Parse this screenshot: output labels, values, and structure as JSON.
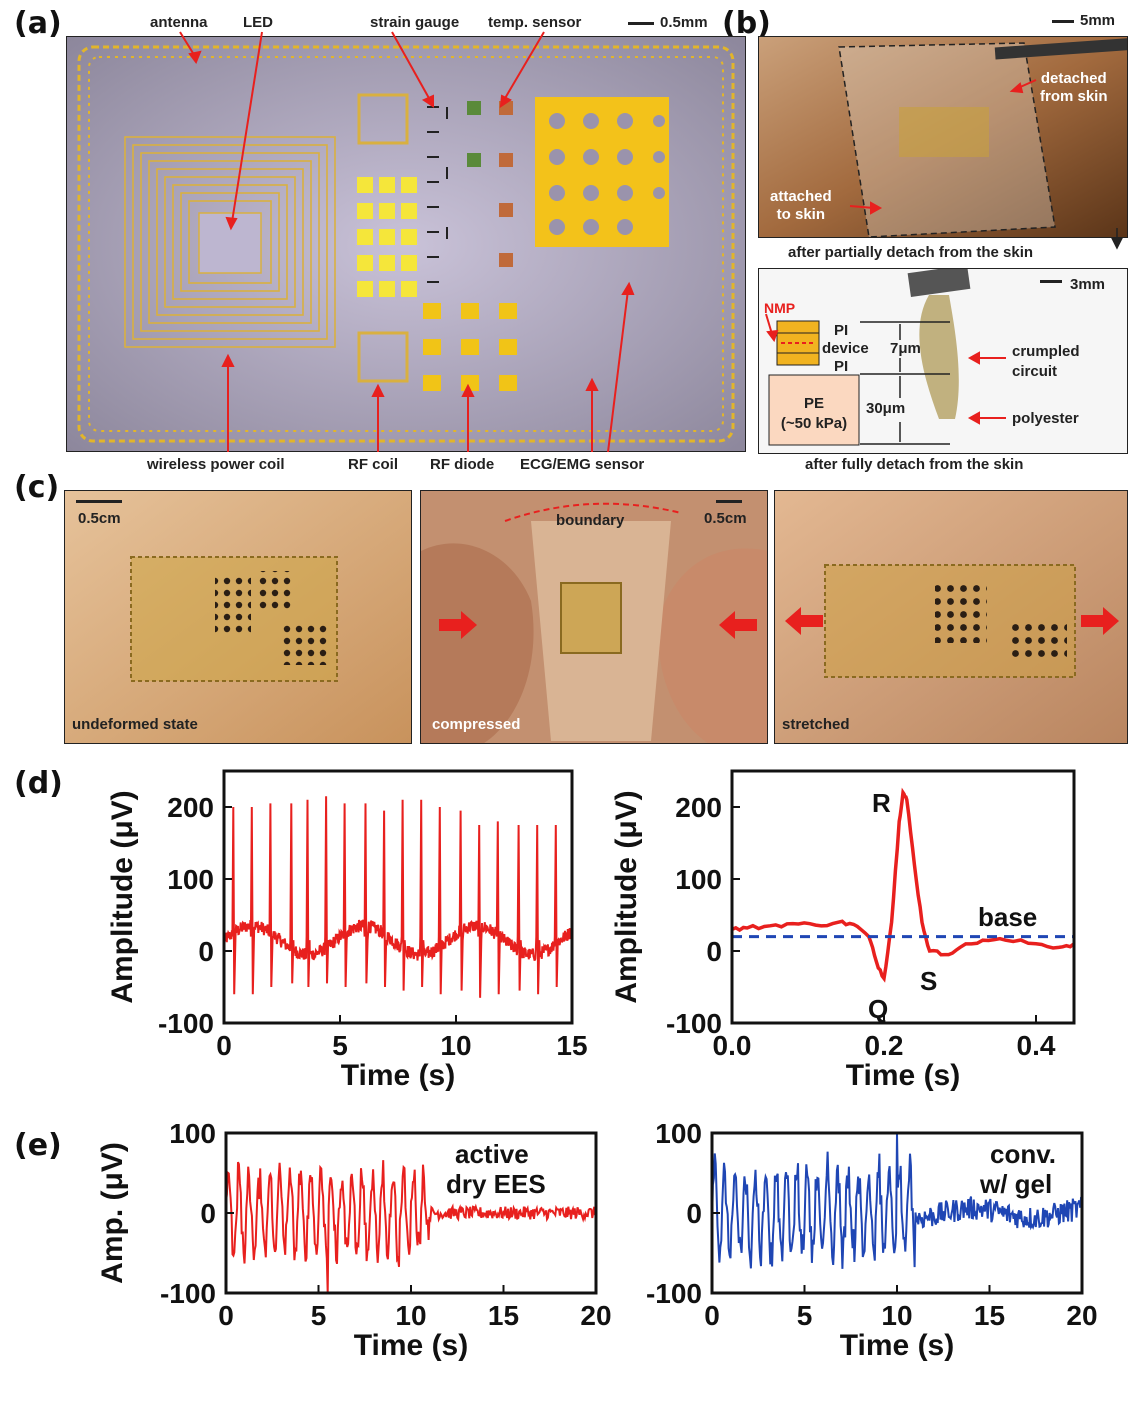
{
  "panels": {
    "a": "(a)",
    "b": "(b)",
    "c": "(c)",
    "d": "(d)",
    "e": "(e)"
  },
  "panel_a": {
    "top_labels": [
      "antenna",
      "LED",
      "strain gauge",
      "temp. sensor"
    ],
    "scale_bar": "0.5mm",
    "bottom_labels": [
      "wireless power coil",
      "RF coil",
      "RF diode",
      "ECG/EMG sensor"
    ]
  },
  "panel_b": {
    "scale_top": "5mm",
    "detached": "detached\nfrom skin",
    "detached_l1": "detached",
    "detached_l2": "from skin",
    "attached_l1": "attached",
    "attached_l2": "to skin",
    "caption_mid": "after partially detach from the skin",
    "scale_bottom": "3mm",
    "nmp": "NMP",
    "pi_top": "PI",
    "device": "device",
    "pi_bot": "PI",
    "thick_7": "7μm",
    "thick_30": "30μm",
    "pe_l1": "PE",
    "pe_l2": "(~50 kPa)",
    "crumpled_l1": "crumpled",
    "crumpled_l2": "circuit",
    "polyester": "polyester",
    "caption_bottom": "after fully detach from the skin"
  },
  "panel_c": {
    "scale": "0.5cm",
    "boundary": "boundary",
    "states": [
      "undeformed state",
      "compressed",
      "stretched"
    ]
  },
  "colors": {
    "red": "#e8201e",
    "blue": "#1f46b4",
    "gold": "#e3b92a",
    "skin": "#d8a878"
  },
  "chart_data": [
    {
      "type": "line",
      "panel": "d-left",
      "ylabel": "Amplitude (μV)",
      "xlabel": "Time (s)",
      "xlim": [
        0,
        15
      ],
      "ylim": [
        -100,
        250
      ],
      "xticks": [
        "0",
        "5",
        "10",
        "15"
      ],
      "yticks": [
        "-100",
        "0",
        "100",
        "200"
      ],
      "series": [
        {
          "color": "#e8201e",
          "baseline": 15,
          "r_peaks": [
            [
              0.4,
              200
            ],
            [
              1.2,
              200
            ],
            [
              2.0,
              205
            ],
            [
              2.9,
              205
            ],
            [
              3.6,
              210
            ],
            [
              4.4,
              215
            ],
            [
              5.2,
              205
            ],
            [
              6.1,
              205
            ],
            [
              6.9,
              195
            ],
            [
              7.7,
              210
            ],
            [
              8.5,
              210
            ],
            [
              9.3,
              200
            ],
            [
              10.2,
              195
            ],
            [
              11.0,
              175
            ],
            [
              11.8,
              180
            ],
            [
              12.7,
              175
            ],
            [
              13.5,
              175
            ],
            [
              14.3,
              175
            ]
          ],
          "s_depths": [
            -60,
            -60,
            -50,
            -45,
            -50,
            -45,
            -50,
            -45,
            -50,
            -55,
            -50,
            -60,
            -55,
            -65,
            -60,
            -55,
            -60,
            -50
          ]
        }
      ]
    },
    {
      "type": "line",
      "panel": "d-right",
      "ylabel": "Amplitude (μV)",
      "xlabel": "Time (s)",
      "xlim": [
        0,
        0.45
      ],
      "ylim": [
        -100,
        250
      ],
      "xticks": [
        "0.0",
        "0.2",
        "0.4"
      ],
      "yticks": [
        "-100",
        "0",
        "100",
        "200"
      ],
      "annotations": [
        "R",
        "Q",
        "S",
        "base"
      ],
      "series": [
        {
          "color": "#e8201e",
          "x": [
            0,
            0.02,
            0.05,
            0.08,
            0.11,
            0.14,
            0.16,
            0.18,
            0.19,
            0.2,
            0.21,
            0.22,
            0.225,
            0.23,
            0.24,
            0.25,
            0.26,
            0.28,
            0.3,
            0.33,
            0.36,
            0.4,
            0.43,
            0.45
          ],
          "y": [
            30,
            32,
            35,
            38,
            36,
            40,
            37,
            20,
            -15,
            -38,
            40,
            180,
            220,
            210,
            120,
            40,
            0,
            -5,
            5,
            15,
            15,
            10,
            5,
            10
          ]
        },
        {
          "color": "#1f46b4",
          "dashed": true,
          "x": [
            0,
            0.45
          ],
          "y": [
            20,
            20
          ]
        }
      ]
    },
    {
      "type": "line",
      "panel": "e-left",
      "ylabel": "Amp. (μV)",
      "xlabel": "Time (s)",
      "xlim": [
        0,
        20
      ],
      "ylim": [
        -100,
        100
      ],
      "xticks": [
        "0",
        "5",
        "10",
        "15",
        "20"
      ],
      "yticks": [
        "-100",
        "0",
        "100"
      ],
      "legend": "active dry EES",
      "legend_l1": "active",
      "legend_l2": "dry EES",
      "series": [
        {
          "color": "#e8201e",
          "active_until": 11,
          "amp_active": 55,
          "amp_rest": 8,
          "spike": [
            5.5,
            -100
          ]
        }
      ]
    },
    {
      "type": "line",
      "panel": "e-right",
      "ylabel": "",
      "xlabel": "Time (s)",
      "xlim": [
        0,
        20
      ],
      "ylim": [
        -100,
        100
      ],
      "xticks": [
        "0",
        "5",
        "10",
        "15",
        "20"
      ],
      "yticks": [
        "-100",
        "0",
        "100"
      ],
      "legend": "conv. w/ gel",
      "legend_l1": "conv.",
      "legend_l2": "w/ gel",
      "series": [
        {
          "color": "#1f46b4",
          "active_until": 11,
          "amp_active": 60,
          "amp_rest": 15,
          "spike": [
            10,
            100
          ]
        }
      ]
    }
  ]
}
